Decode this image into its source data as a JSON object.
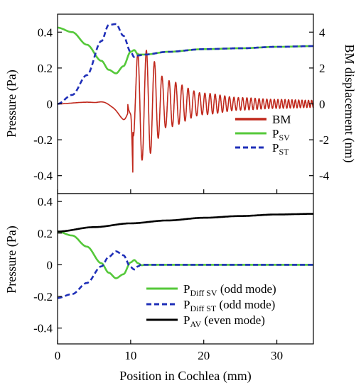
{
  "chart_data": [
    {
      "type": "line",
      "xlim": [
        0,
        35
      ],
      "ylim": [
        -0.5,
        0.5
      ],
      "y2lim": [
        -5,
        5
      ],
      "ylabel": "Pressure (Pa)",
      "y2label": "BM displacement (nm)",
      "yticks": [
        {
          "v": 0.4,
          "label": "0.4"
        },
        {
          "v": 0.2,
          "label": "0.2"
        },
        {
          "v": 0,
          "label": "0"
        },
        {
          "v": -0.2,
          "label": "-0.2"
        },
        {
          "v": -0.4,
          "label": "-0.4"
        }
      ],
      "y2ticks": [
        {
          "v": 4,
          "label": "4"
        },
        {
          "v": 2,
          "label": "2"
        },
        {
          "v": 0,
          "label": "0"
        },
        {
          "v": -2,
          "label": "-2"
        },
        {
          "v": -4,
          "label": "-4"
        }
      ],
      "legend_position": "bottom-right",
      "series": [
        {
          "name": "BM",
          "sub": "",
          "color": "#c0281c",
          "dash": "",
          "axis": "y2",
          "kind": "bm",
          "envelope_x": [
            0,
            5,
            7.5,
            9,
            10,
            10.5,
            11.3,
            12,
            15,
            20,
            25,
            30,
            35
          ],
          "envelope_y": [
            0.05,
            0.1,
            0.6,
            1.0,
            0.3,
            2.2,
            3.2,
            3.0,
            1.3,
            0.6,
            0.35,
            0.25,
            0.2
          ],
          "osc_start": 10.3
        },
        {
          "name": "P",
          "sub": "SV",
          "color": "#55c83a",
          "dash": "",
          "axis": "y1",
          "x": [
            0,
            2,
            4,
            6,
            7,
            8,
            9,
            10,
            10.5,
            11,
            12,
            15,
            20,
            25,
            30,
            35
          ],
          "y": [
            0.425,
            0.4,
            0.33,
            0.24,
            0.19,
            0.17,
            0.21,
            0.29,
            0.3,
            0.275,
            0.275,
            0.29,
            0.305,
            0.31,
            0.318,
            0.322
          ]
        },
        {
          "name": "P",
          "sub": "ST",
          "color": "#1f2fb8",
          "dash": "7,4",
          "axis": "y1",
          "x": [
            0,
            2,
            4,
            6,
            7,
            8,
            9,
            10,
            10.5,
            11,
            12,
            15,
            20,
            25,
            30,
            35
          ],
          "y": [
            0.0,
            0.05,
            0.16,
            0.35,
            0.44,
            0.445,
            0.38,
            0.29,
            0.26,
            0.27,
            0.275,
            0.29,
            0.305,
            0.31,
            0.318,
            0.322
          ]
        }
      ]
    },
    {
      "type": "line",
      "xlim": [
        0,
        35
      ],
      "ylim": [
        -0.5,
        0.45
      ],
      "xlabel": "Position in Cochlea (mm)",
      "ylabel": "Pressure (Pa)",
      "xticks": [
        {
          "v": 0,
          "label": "0"
        },
        {
          "v": 10,
          "label": "10"
        },
        {
          "v": 20,
          "label": "20"
        },
        {
          "v": 30,
          "label": "30"
        }
      ],
      "yticks": [
        {
          "v": 0.4,
          "label": "0.4"
        },
        {
          "v": 0.2,
          "label": "0.2"
        },
        {
          "v": 0,
          "label": "0"
        },
        {
          "v": -0.2,
          "label": "-0.2"
        },
        {
          "v": -0.4,
          "label": "-0.4"
        }
      ],
      "legend_position": "bottom-right",
      "series": [
        {
          "name": "P",
          "sub": "Diff SV",
          "suffix": " (odd mode)",
          "color": "#55c83a",
          "dash": "",
          "axis": "y1",
          "x": [
            0,
            2,
            4,
            6,
            7,
            8,
            9,
            10,
            10.5,
            11,
            11.5,
            12,
            15,
            20,
            25,
            30,
            35
          ],
          "y": [
            0.21,
            0.185,
            0.115,
            0.01,
            -0.05,
            -0.085,
            -0.06,
            0.015,
            0.03,
            0.01,
            -0.003,
            0,
            0,
            0,
            0,
            0,
            0
          ]
        },
        {
          "name": "P",
          "sub": "Diff ST",
          "suffix": " (odd mode)",
          "color": "#1f2fb8",
          "dash": "7,4",
          "axis": "y1",
          "x": [
            0,
            2,
            4,
            6,
            7,
            8,
            9,
            10,
            10.5,
            11,
            11.5,
            12,
            15,
            20,
            25,
            30,
            35
          ],
          "y": [
            -0.21,
            -0.185,
            -0.115,
            -0.01,
            0.05,
            0.085,
            0.06,
            -0.015,
            -0.03,
            -0.01,
            0.003,
            0,
            0,
            0,
            0,
            0,
            0
          ]
        },
        {
          "name": "P",
          "sub": "AV",
          "suffix": " (even mode)",
          "color": "#000000",
          "dash": "",
          "axis": "y1",
          "x": [
            0,
            5,
            10,
            15,
            20,
            25,
            30,
            35
          ],
          "y": [
            0.21,
            0.238,
            0.262,
            0.28,
            0.297,
            0.308,
            0.318,
            0.322
          ]
        }
      ]
    }
  ]
}
